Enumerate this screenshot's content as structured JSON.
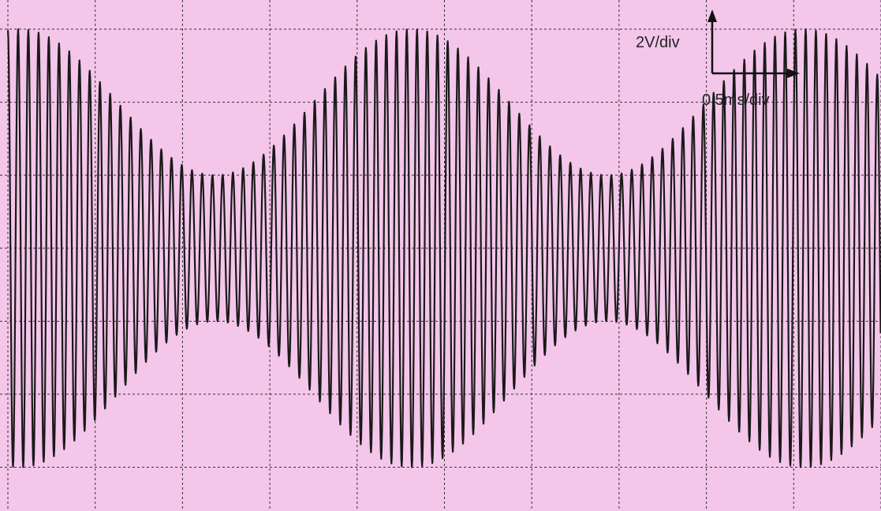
{
  "chart_data": {
    "type": "line",
    "title": "",
    "signal": "amplitude-modulated sinusoid (oscilloscope trace)",
    "vertical_scale_label": "2V/div",
    "horizontal_scale_label": "0,5ms/div",
    "x_unit": "ms",
    "y_unit": "V",
    "xlim": [
      0,
      4.9
    ],
    "ylim": [
      -7.2,
      6.8
    ],
    "grid": true,
    "grid_divisions_x": 10,
    "grid_divisions_y": 7,
    "carrier_period_ms": 0.0574,
    "envelope": {
      "max_amplitude_V": 6,
      "min_amplitude_V": 2,
      "period_ms": 2.2,
      "first_max_at_ms": 0.065,
      "first_min_at_ms": 1.17
    },
    "trace_color": "#1a1a1a",
    "background_color": "#f4c6ea",
    "grid_color": "#333333"
  }
}
